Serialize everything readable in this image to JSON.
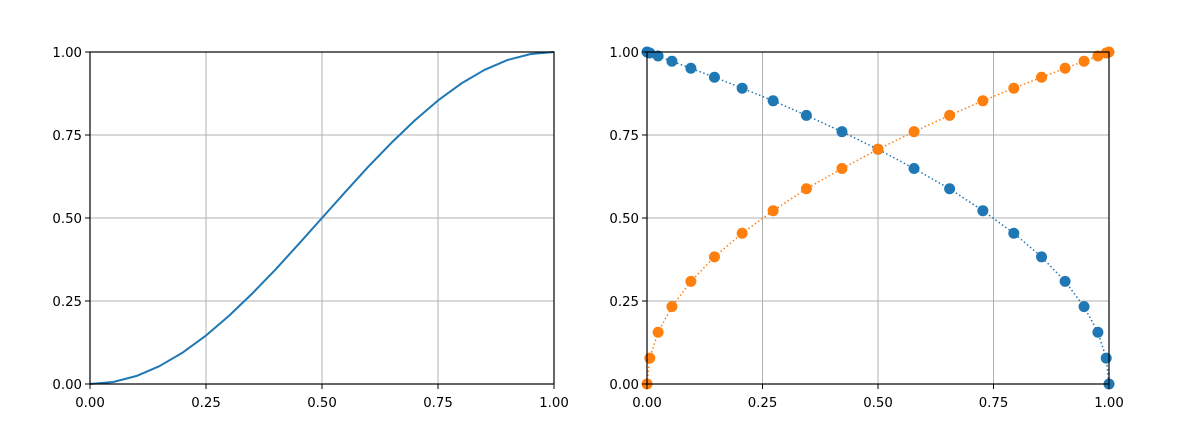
{
  "chart_data": [
    {
      "type": "line",
      "title": "",
      "xlabel": "",
      "ylabel": "",
      "xlim": [
        0,
        1
      ],
      "ylim": [
        0,
        1
      ],
      "grid": true,
      "xticks": [
        "0.00",
        "0.25",
        "0.50",
        "0.75",
        "1.00"
      ],
      "yticks": [
        "0.00",
        "0.25",
        "0.50",
        "0.75",
        "1.00"
      ],
      "series": [
        {
          "color": "#1f77b4",
          "style": "solid",
          "x": [
            0,
            0.05,
            0.1,
            0.15,
            0.2,
            0.25,
            0.3,
            0.35,
            0.4,
            0.45,
            0.5,
            0.55,
            0.6,
            0.65,
            0.7,
            0.75,
            0.8,
            0.85,
            0.9,
            0.95,
            1
          ],
          "y": [
            0,
            0.006,
            0.024,
            0.054,
            0.095,
            0.146,
            0.206,
            0.273,
            0.345,
            0.422,
            0.5,
            0.578,
            0.655,
            0.727,
            0.794,
            0.854,
            0.905,
            0.946,
            0.976,
            0.994,
            1
          ]
        }
      ]
    },
    {
      "type": "line",
      "title": "",
      "xlabel": "",
      "ylabel": "",
      "xlim": [
        0,
        1
      ],
      "ylim": [
        0,
        1
      ],
      "grid": true,
      "xticks": [
        "0.00",
        "0.25",
        "0.50",
        "0.75",
        "1.00"
      ],
      "yticks": [
        "0.00",
        "0.25",
        "0.50",
        "0.75",
        "1.00"
      ],
      "series": [
        {
          "color": "#1f77b4",
          "style": "dotted-with-markers",
          "x": [
            0,
            0.006,
            0.024,
            0.054,
            0.095,
            0.146,
            0.206,
            0.273,
            0.345,
            0.422,
            0.5,
            0.578,
            0.655,
            0.727,
            0.794,
            0.854,
            0.905,
            0.946,
            0.976,
            0.994,
            1
          ],
          "y": [
            1,
            0.997,
            0.988,
            0.972,
            0.951,
            0.924,
            0.891,
            0.853,
            0.809,
            0.76,
            0.707,
            0.649,
            0.588,
            0.522,
            0.454,
            0.383,
            0.309,
            0.233,
            0.156,
            0.078,
            0
          ]
        },
        {
          "color": "#ff7f0e",
          "style": "dotted-with-markers",
          "x": [
            0,
            0.006,
            0.024,
            0.054,
            0.095,
            0.146,
            0.206,
            0.273,
            0.345,
            0.422,
            0.5,
            0.578,
            0.655,
            0.727,
            0.794,
            0.854,
            0.905,
            0.946,
            0.976,
            0.994,
            1
          ],
          "y": [
            0,
            0.078,
            0.156,
            0.233,
            0.309,
            0.383,
            0.454,
            0.522,
            0.588,
            0.649,
            0.707,
            0.76,
            0.809,
            0.853,
            0.891,
            0.924,
            0.951,
            0.972,
            0.988,
            0.997,
            1
          ]
        }
      ]
    }
  ]
}
